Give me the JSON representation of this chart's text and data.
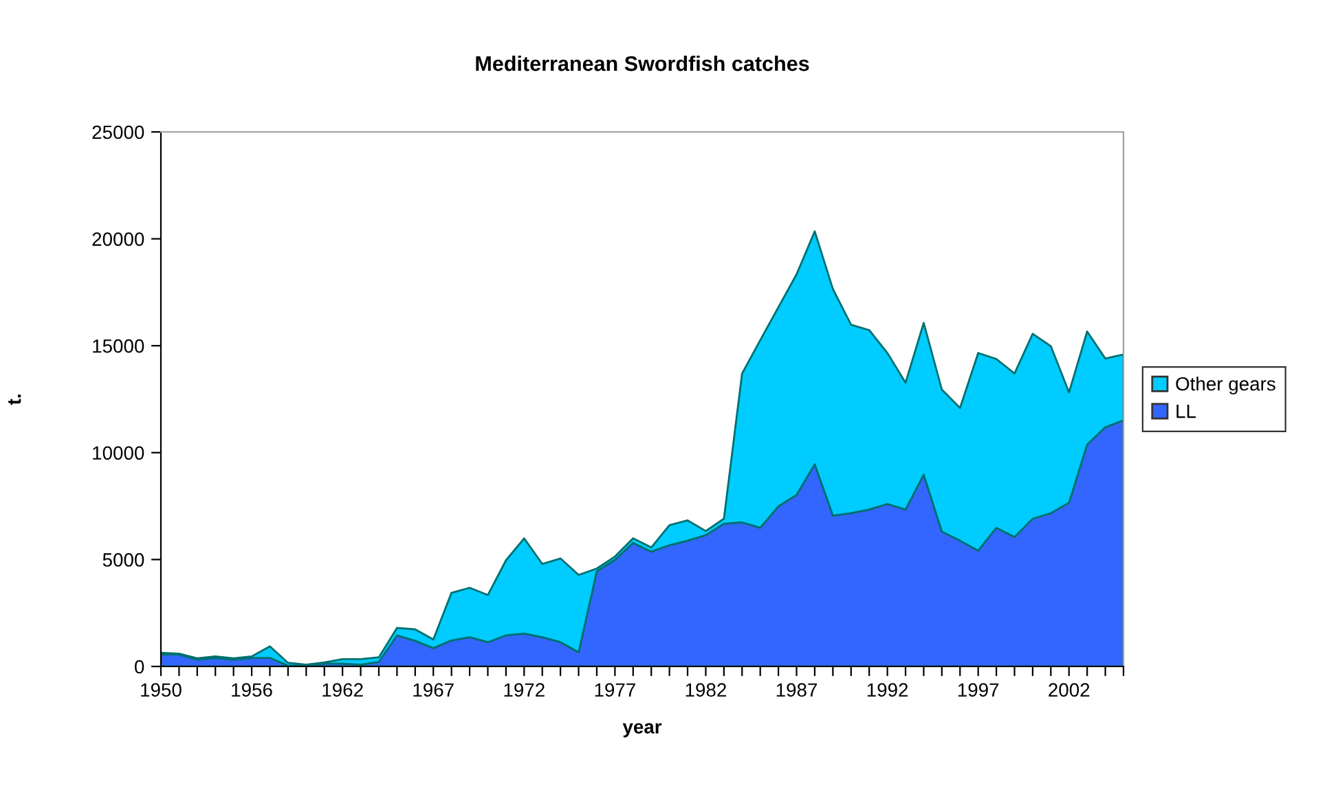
{
  "chart_data": {
    "type": "area",
    "stacked": true,
    "title": "Mediterranean Swordfish catches",
    "xlabel": "year",
    "ylabel": "t.",
    "categories": [
      "1950",
      null,
      null,
      null,
      null,
      "1956",
      null,
      null,
      null,
      null,
      "1962",
      null,
      null,
      null,
      null,
      "1967",
      null,
      null,
      null,
      null,
      "1972",
      null,
      null,
      null,
      null,
      "1977",
      null,
      null,
      null,
      null,
      "1982",
      null,
      null,
      null,
      null,
      "1987",
      null,
      null,
      null,
      null,
      "1992",
      null,
      null,
      null,
      null,
      "1997",
      null,
      null,
      null,
      null,
      "2002",
      null,
      null,
      null
    ],
    "series": [
      {
        "name": "LL",
        "color": "#3366ff",
        "values": [
          560,
          560,
          320,
          400,
          320,
          400,
          400,
          40,
          40,
          130,
          130,
          85,
          215,
          1455,
          1200,
          855,
          1220,
          1370,
          1135,
          1455,
          1540,
          1370,
          1135,
          665,
          4450,
          4990,
          5780,
          5370,
          5670,
          5885,
          6140,
          6675,
          6740,
          6485,
          7490,
          8025,
          9460,
          7060,
          7170,
          7340,
          7600,
          7340,
          8970,
          6310,
          5885,
          5415,
          6485,
          6055,
          6910,
          7170,
          7660,
          10380,
          11190,
          11510
        ]
      },
      {
        "name": "Other gears",
        "color": "#00ccff",
        "values": [
          80,
          40,
          60,
          70,
          60,
          70,
          540,
          130,
          45,
          60,
          210,
          255,
          215,
          345,
          535,
          405,
          2225,
          2310,
          2205,
          3510,
          4450,
          3425,
          3915,
          3615,
          130,
          150,
          210,
          195,
          940,
          945,
          195,
          235,
          6960,
          8775,
          9310,
          10315,
          10890,
          10595,
          8815,
          8390,
          7060,
          5930,
          7100,
          6640,
          6205,
          9245,
          7895,
          7645,
          8650,
          7810,
          5160,
          5285,
          3210,
          3085
        ]
      }
    ],
    "ylim": [
      0,
      25000
    ],
    "yticks": [
      0,
      5000,
      10000,
      15000,
      20000,
      25000
    ],
    "grid": false,
    "legend": "right"
  }
}
